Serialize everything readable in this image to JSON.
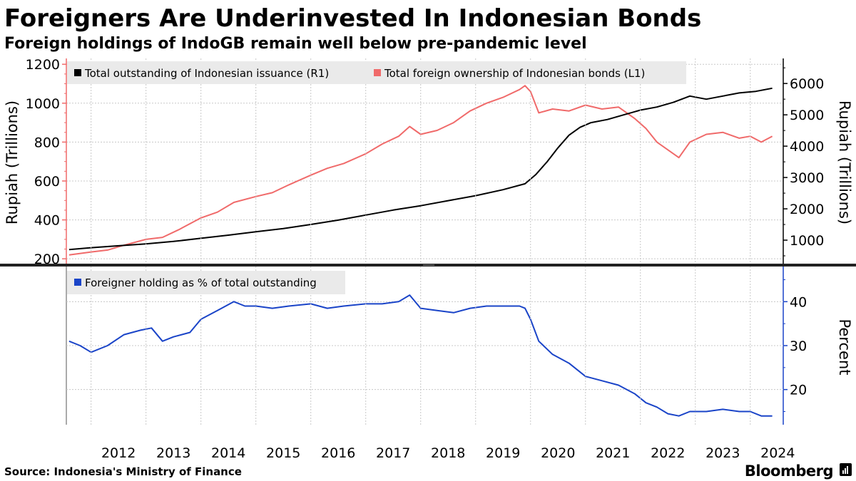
{
  "header": {
    "title": "Foreigners Are Underinvested In Indonesian Bonds",
    "subtitle": "Foreign holdings of IndoGB remain well below pre-pandemic level"
  },
  "footer": {
    "source": "Source: Indonesia's Ministry of Finance",
    "brand": "Bloomberg"
  },
  "colors": {
    "issuance": "#000000",
    "foreign": "#f06a6a",
    "percent": "#1a44c8",
    "grid": "#c8c8c8"
  },
  "chart_data": [
    {
      "type": "line",
      "ylabel_left": "Rupiah (Trillions)",
      "ylabel_right": "Rupiah (Trillions)",
      "ylim_left": [
        175,
        1230
      ],
      "ylim_right": [
        250,
        6800
      ],
      "yticks_left": [
        200,
        400,
        600,
        800,
        1000,
        1200
      ],
      "yticks_right": [
        1000,
        2000,
        3000,
        4000,
        5000,
        6000
      ],
      "legend_position": "top-left",
      "series": [
        {
          "name": "Total outstanding of Indonesian issuance (R1)",
          "axis": "right",
          "x": [
            2011.6,
            2012.0,
            2012.5,
            2013.0,
            2013.5,
            2014.0,
            2014.5,
            2015.0,
            2015.5,
            2016.0,
            2016.5,
            2017.0,
            2017.5,
            2018.0,
            2018.5,
            2019.0,
            2019.5,
            2019.9,
            2020.1,
            2020.3,
            2020.5,
            2020.7,
            2020.9,
            2021.1,
            2021.4,
            2021.7,
            2022.0,
            2022.3,
            2022.6,
            2022.9,
            2023.2,
            2023.5,
            2023.8,
            2024.1,
            2024.4
          ],
          "values": [
            700,
            760,
            820,
            880,
            960,
            1060,
            1160,
            1270,
            1370,
            1500,
            1640,
            1800,
            1960,
            2100,
            2260,
            2420,
            2610,
            2800,
            3100,
            3500,
            3950,
            4350,
            4600,
            4750,
            4850,
            5000,
            5150,
            5250,
            5400,
            5600,
            5500,
            5600,
            5700,
            5750,
            5850
          ]
        },
        {
          "name": "Total foreign ownership of Indonesian bonds (L1)",
          "axis": "left",
          "x": [
            2011.6,
            2012.0,
            2012.3,
            2012.6,
            2013.0,
            2013.3,
            2013.6,
            2014.0,
            2014.3,
            2014.6,
            2015.0,
            2015.3,
            2015.6,
            2016.0,
            2016.3,
            2016.6,
            2017.0,
            2017.3,
            2017.6,
            2017.8,
            2018.0,
            2018.3,
            2018.6,
            2018.9,
            2019.2,
            2019.5,
            2019.8,
            2019.9,
            2020.0,
            2020.15,
            2020.4,
            2020.7,
            2021.0,
            2021.3,
            2021.6,
            2021.9,
            2022.1,
            2022.3,
            2022.5,
            2022.7,
            2022.9,
            2023.2,
            2023.5,
            2023.8,
            2024.0,
            2024.2,
            2024.4
          ],
          "values": [
            220,
            235,
            245,
            270,
            300,
            310,
            350,
            410,
            440,
            490,
            520,
            540,
            580,
            630,
            665,
            690,
            740,
            790,
            830,
            880,
            840,
            860,
            900,
            960,
            1000,
            1030,
            1070,
            1090,
            1060,
            950,
            970,
            960,
            990,
            970,
            980,
            920,
            870,
            800,
            760,
            720,
            800,
            840,
            850,
            820,
            830,
            800,
            830
          ]
        }
      ]
    },
    {
      "type": "line",
      "ylabel_right": "Percent",
      "ylim_right": [
        12,
        48
      ],
      "yticks_right": [
        20,
        30,
        40
      ],
      "legend_position": "top-left",
      "series": [
        {
          "name": "Foreigner holding as % of total outstanding",
          "axis": "right",
          "x": [
            2011.6,
            2011.8,
            2012.0,
            2012.3,
            2012.6,
            2012.9,
            2013.1,
            2013.3,
            2013.5,
            2013.8,
            2014.0,
            2014.3,
            2014.6,
            2014.8,
            2015.0,
            2015.3,
            2015.6,
            2016.0,
            2016.3,
            2016.6,
            2017.0,
            2017.3,
            2017.6,
            2017.8,
            2018.0,
            2018.3,
            2018.6,
            2018.9,
            2019.2,
            2019.5,
            2019.8,
            2019.9,
            2020.0,
            2020.15,
            2020.4,
            2020.7,
            2021.0,
            2021.3,
            2021.6,
            2021.9,
            2022.1,
            2022.3,
            2022.5,
            2022.7,
            2022.9,
            2023.2,
            2023.5,
            2023.8,
            2024.0,
            2024.2,
            2024.4
          ],
          "values": [
            31,
            30,
            28.5,
            30,
            32.5,
            33.5,
            34,
            31,
            32,
            33,
            36,
            38,
            40,
            39,
            39,
            38.5,
            39,
            39.5,
            38.5,
            39,
            39.5,
            39.5,
            40,
            41.5,
            38.5,
            38,
            37.5,
            38.5,
            39,
            39,
            39,
            38.5,
            36,
            31,
            28,
            26,
            23,
            22,
            21,
            19,
            17,
            16,
            14.5,
            14,
            15,
            15,
            15.5,
            15,
            15,
            14,
            14
          ]
        }
      ]
    }
  ],
  "x_axis": {
    "labels": [
      "2012",
      "2013",
      "2014",
      "2015",
      "2016",
      "2017",
      "2018",
      "2019",
      "2020",
      "2021",
      "2022",
      "2023",
      "2024"
    ],
    "xlim": [
      2011.55,
      2024.6
    ]
  }
}
